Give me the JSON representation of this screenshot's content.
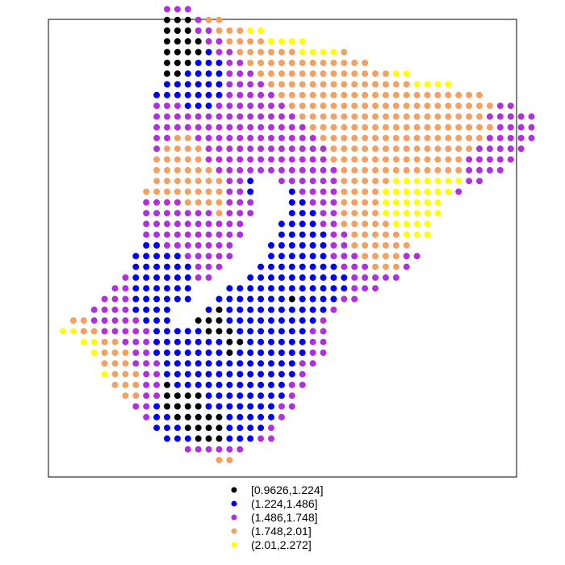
{
  "chart_data": {
    "type": "scatter",
    "title": "",
    "xlabel": "",
    "ylabel": "",
    "axes_visible": false,
    "grid": false,
    "legend_position": "bottom",
    "point_spacing": 1,
    "classes": [
      {
        "label": "[0.9626,1.224]",
        "color": "#000000"
      },
      {
        "label": "(1.224,1.486]",
        "color": "#0000ff"
      },
      {
        "label": "(1.486,1.748]",
        "color": "#b030e0"
      },
      {
        "label": "(1.748,2.01]",
        "color": "#f4a060"
      },
      {
        "label": "(2.01,2.272]",
        "color": "#ffff00"
      }
    ],
    "rows": [
      {
        "y": 45,
        "x_start": 14,
        "classes": [
          2,
          2,
          2
        ]
      },
      {
        "y": 44,
        "x_start": 14,
        "classes": [
          0,
          0,
          0,
          2,
          3,
          3
        ]
      },
      {
        "y": 43,
        "x_start": 14,
        "classes": [
          0,
          0,
          0,
          2,
          2,
          3,
          3,
          3,
          4,
          4
        ]
      },
      {
        "y": 42,
        "x_start": 14,
        "classes": [
          0,
          0,
          0,
          0,
          2,
          2,
          3,
          3,
          3,
          3,
          4,
          4,
          4,
          4
        ]
      },
      {
        "y": 41,
        "x_start": 14,
        "classes": [
          0,
          0,
          0,
          0,
          1,
          2,
          2,
          3,
          3,
          3,
          3,
          3,
          3,
          4,
          4,
          4,
          4,
          3
        ]
      },
      {
        "y": 40,
        "x_start": 14,
        "classes": [
          0,
          0,
          0,
          1,
          1,
          1,
          2,
          2,
          3,
          3,
          3,
          3,
          3,
          3,
          3,
          3,
          3,
          3,
          3,
          3
        ]
      },
      {
        "y": 39,
        "x_start": 14,
        "classes": [
          0,
          0,
          1,
          1,
          1,
          1,
          2,
          2,
          2,
          3,
          3,
          3,
          3,
          3,
          3,
          3,
          3,
          3,
          3,
          3,
          3,
          3,
          4,
          4
        ]
      },
      {
        "y": 38,
        "x_start": 14,
        "classes": [
          1,
          1,
          1,
          1,
          1,
          1,
          2,
          2,
          2,
          2,
          3,
          3,
          3,
          3,
          3,
          3,
          3,
          3,
          3,
          3,
          3,
          3,
          3,
          3,
          4,
          4,
          4,
          4
        ]
      },
      {
        "y": 37,
        "x_start": 13,
        "classes": [
          1,
          1,
          1,
          1,
          1,
          1,
          1,
          2,
          2,
          2,
          2,
          2,
          3,
          3,
          3,
          3,
          3,
          3,
          3,
          3,
          3,
          3,
          3,
          3,
          3,
          3,
          3,
          3,
          3,
          3,
          3,
          3
        ]
      },
      {
        "y": 36,
        "x_start": 13,
        "classes": [
          2,
          2,
          2,
          1,
          1,
          1,
          2,
          2,
          2,
          2,
          2,
          2,
          2,
          3,
          3,
          3,
          3,
          3,
          3,
          3,
          3,
          3,
          3,
          3,
          3,
          3,
          3,
          3,
          3,
          3,
          3,
          3,
          3,
          2,
          2
        ]
      },
      {
        "y": 35,
        "x_start": 13,
        "classes": [
          2,
          2,
          2,
          2,
          2,
          2,
          2,
          2,
          2,
          2,
          2,
          2,
          2,
          2,
          3,
          3,
          3,
          3,
          3,
          3,
          3,
          3,
          3,
          3,
          3,
          3,
          3,
          3,
          3,
          3,
          3,
          3,
          2,
          2,
          2,
          2,
          2
        ]
      },
      {
        "y": 34,
        "x_start": 13,
        "classes": [
          2,
          2,
          2,
          2,
          2,
          2,
          2,
          2,
          2,
          2,
          2,
          2,
          2,
          2,
          2,
          3,
          3,
          3,
          3,
          3,
          3,
          3,
          3,
          3,
          3,
          3,
          3,
          3,
          3,
          3,
          3,
          3,
          3,
          2,
          2,
          2,
          2
        ]
      },
      {
        "y": 33,
        "x_start": 13,
        "classes": [
          2,
          2,
          3,
          3,
          2,
          2,
          2,
          2,
          2,
          2,
          2,
          2,
          2,
          2,
          2,
          2,
          3,
          3,
          3,
          3,
          3,
          3,
          3,
          3,
          3,
          3,
          3,
          3,
          3,
          3,
          3,
          3,
          2,
          2,
          2,
          2,
          2
        ]
      },
      {
        "y": 32,
        "x_start": 13,
        "classes": [
          2,
          3,
          3,
          3,
          3,
          2,
          2,
          2,
          2,
          2,
          2,
          2,
          2,
          2,
          2,
          2,
          2,
          3,
          3,
          3,
          3,
          3,
          3,
          3,
          3,
          3,
          3,
          3,
          3,
          3,
          3,
          2,
          2,
          2,
          2,
          2
        ]
      },
      {
        "y": 31,
        "x_start": 13,
        "classes": [
          3,
          3,
          3,
          3,
          3,
          2,
          2,
          2,
          2,
          2,
          2,
          2,
          2,
          2,
          2,
          2,
          2,
          3,
          3,
          3,
          3,
          3,
          3,
          3,
          3,
          3,
          3,
          3,
          3,
          3,
          2,
          2,
          2,
          2,
          2
        ]
      },
      {
        "y": 30,
        "x_start": 13,
        "classes": [
          3,
          3,
          3,
          3,
          3,
          3,
          2,
          2,
          2,
          2,
          2,
          2,
          2,
          2,
          2,
          2,
          2,
          2,
          3,
          3,
          3,
          3,
          3,
          3,
          3,
          3,
          3,
          3,
          3,
          3,
          2,
          2,
          2,
          2
        ]
      },
      {
        "y": 29,
        "x_start": 13,
        "classes": [
          3,
          3,
          3,
          3,
          3,
          3,
          3,
          2,
          2,
          1,
          null,
          null,
          2,
          2,
          2,
          2,
          2,
          2,
          3,
          3,
          3,
          3,
          3,
          4,
          4,
          4,
          4,
          4,
          4,
          4,
          2,
          2
        ]
      },
      {
        "y": 28,
        "x_start": 12,
        "classes": [
          3,
          3,
          3,
          3,
          3,
          3,
          3,
          3,
          2,
          2,
          1,
          null,
          null,
          null,
          1,
          2,
          2,
          2,
          2,
          3,
          3,
          3,
          3,
          4,
          4,
          4,
          4,
          4,
          4,
          4,
          2
        ]
      },
      {
        "y": 27,
        "x_start": 12,
        "classes": [
          2,
          2,
          2,
          2,
          3,
          3,
          3,
          3,
          2,
          2,
          2,
          null,
          null,
          null,
          1,
          1,
          2,
          2,
          2,
          3,
          3,
          3,
          3,
          4,
          4,
          4,
          4,
          4,
          4
        ]
      },
      {
        "y": 26,
        "x_start": 12,
        "classes": [
          2,
          2,
          2,
          2,
          2,
          2,
          2,
          3,
          2,
          2,
          2,
          null,
          null,
          null,
          1,
          1,
          1,
          2,
          2,
          3,
          3,
          3,
          3,
          4,
          4,
          4,
          4,
          4,
          4
        ]
      },
      {
        "y": 25,
        "x_start": 12,
        "classes": [
          2,
          2,
          2,
          2,
          2,
          2,
          2,
          2,
          2,
          2,
          null,
          null,
          null,
          1,
          1,
          1,
          1,
          2,
          2,
          3,
          3,
          3,
          3,
          3,
          4,
          4,
          4,
          4
        ]
      },
      {
        "y": 24,
        "x_start": 12,
        "classes": [
          2,
          2,
          2,
          2,
          2,
          2,
          2,
          2,
          2,
          2,
          null,
          null,
          null,
          1,
          1,
          1,
          1,
          1,
          2,
          2,
          3,
          3,
          3,
          3,
          3,
          4,
          4,
          4
        ]
      },
      {
        "y": 23,
        "x_start": 12,
        "classes": [
          1,
          1,
          2,
          2,
          2,
          2,
          2,
          2,
          2,
          null,
          null,
          null,
          1,
          1,
          1,
          1,
          1,
          1,
          2,
          2,
          3,
          3,
          3,
          3,
          3,
          3
        ]
      },
      {
        "y": 22,
        "x_start": 11,
        "classes": [
          1,
          1,
          1,
          1,
          1,
          2,
          2,
          2,
          2,
          2,
          null,
          null,
          null,
          1,
          1,
          1,
          1,
          1,
          1,
          2,
          2,
          2,
          3,
          3,
          3,
          3,
          2,
          2
        ]
      },
      {
        "y": 21,
        "x_start": 11,
        "classes": [
          1,
          1,
          1,
          1,
          1,
          1,
          2,
          2,
          2,
          null,
          null,
          null,
          1,
          1,
          1,
          1,
          1,
          1,
          1,
          1,
          2,
          2,
          2,
          3,
          3,
          3,
          2
        ]
      },
      {
        "y": 20,
        "x_start": 10,
        "classes": [
          2,
          1,
          1,
          1,
          1,
          1,
          1,
          2,
          2,
          null,
          null,
          null,
          1,
          1,
          1,
          1,
          1,
          1,
          1,
          1,
          1,
          1,
          2,
          2,
          2,
          2,
          2
        ]
      },
      {
        "y": 19,
        "x_start": 9,
        "classes": [
          2,
          2,
          1,
          1,
          1,
          1,
          1,
          1,
          null,
          null,
          null,
          1,
          1,
          1,
          1,
          1,
          1,
          1,
          1,
          1,
          1,
          1,
          1,
          2,
          2,
          2
        ]
      },
      {
        "y": 18,
        "x_start": 8,
        "classes": [
          2,
          2,
          2,
          1,
          1,
          1,
          1,
          1,
          1,
          null,
          null,
          1,
          1,
          1,
          1,
          1,
          1,
          1,
          0,
          1,
          1,
          1,
          1,
          2,
          2
        ]
      },
      {
        "y": 17,
        "x_start": 7,
        "classes": [
          2,
          2,
          2,
          2,
          1,
          1,
          1,
          1,
          null,
          null,
          null,
          1,
          0,
          1,
          1,
          1,
          1,
          1,
          1,
          1,
          1,
          1,
          1,
          2
        ]
      },
      {
        "y": 16,
        "x_start": 5,
        "classes": [
          3,
          3,
          2,
          2,
          2,
          2,
          2,
          1,
          1,
          1,
          null,
          null,
          0,
          0,
          0,
          1,
          1,
          1,
          1,
          1,
          1,
          1,
          1,
          1,
          2
        ]
      },
      {
        "y": 15,
        "x_start": 4,
        "classes": [
          4,
          4,
          3,
          3,
          2,
          2,
          2,
          2,
          2,
          1,
          1,
          1,
          1,
          1,
          0,
          0,
          0,
          1,
          1,
          1,
          1,
          1,
          1,
          1,
          2,
          2
        ]
      },
      {
        "y": 14,
        "x_start": 6,
        "classes": [
          4,
          4,
          3,
          3,
          2,
          2,
          2,
          1,
          1,
          1,
          1,
          1,
          1,
          1,
          0,
          0,
          1,
          1,
          1,
          1,
          1,
          1,
          2,
          2
        ]
      },
      {
        "y": 13,
        "x_start": 7,
        "classes": [
          4,
          3,
          3,
          3,
          2,
          2,
          1,
          1,
          1,
          1,
          1,
          1,
          1,
          0,
          1,
          1,
          1,
          1,
          1,
          1,
          1,
          2,
          2
        ]
      },
      {
        "y": 12,
        "x_start": 8,
        "classes": [
          3,
          3,
          3,
          2,
          2,
          2,
          1,
          1,
          1,
          1,
          1,
          1,
          1,
          1,
          1,
          1,
          1,
          1,
          1,
          2,
          2
        ]
      },
      {
        "y": 11,
        "x_start": 8,
        "classes": [
          4,
          3,
          3,
          3,
          2,
          2,
          1,
          1,
          1,
          1,
          1,
          1,
          1,
          1,
          1,
          1,
          1,
          1,
          1,
          2
        ]
      },
      {
        "y": 10,
        "x_start": 9,
        "classes": [
          3,
          3,
          3,
          2,
          2,
          0,
          1,
          1,
          1,
          1,
          1,
          1,
          1,
          1,
          1,
          1,
          1,
          2,
          2
        ]
      },
      {
        "y": 9,
        "x_start": 10,
        "classes": [
          3,
          3,
          2,
          2,
          0,
          0,
          0,
          0,
          1,
          1,
          1,
          1,
          1,
          1,
          1,
          1,
          2
        ]
      },
      {
        "y": 8,
        "x_start": 11,
        "classes": [
          2,
          2,
          1,
          0,
          0,
          0,
          0,
          1,
          1,
          1,
          1,
          1,
          1,
          1,
          2,
          2
        ]
      },
      {
        "y": 7,
        "x_start": 12,
        "classes": [
          2,
          1,
          1,
          0,
          0,
          0,
          0,
          0,
          1,
          1,
          1,
          1,
          1,
          2
        ]
      },
      {
        "y": 6,
        "x_start": 13,
        "classes": [
          1,
          1,
          1,
          0,
          0,
          0,
          0,
          1,
          1,
          1,
          1,
          2
        ]
      },
      {
        "y": 5,
        "x_start": 14,
        "classes": [
          1,
          1,
          1,
          0,
          0,
          0,
          1,
          1,
          1,
          2,
          2
        ]
      },
      {
        "y": 4,
        "x_start": 16,
        "classes": [
          2,
          2,
          2,
          2,
          2,
          2
        ]
      },
      {
        "y": 3,
        "x_start": 19,
        "classes": [
          3,
          3
        ]
      }
    ],
    "legend": [
      {
        "label": "[0.9626,1.224]",
        "color": "#000000"
      },
      {
        "label": "(1.224,1.486]",
        "color": "#0000ff"
      },
      {
        "label": "(1.486,1.748]",
        "color": "#b030e0"
      },
      {
        "label": "(1.748,2.01]",
        "color": "#f4a060"
      },
      {
        "label": "(2.01,2.272]",
        "color": "#ffff00"
      }
    ]
  }
}
